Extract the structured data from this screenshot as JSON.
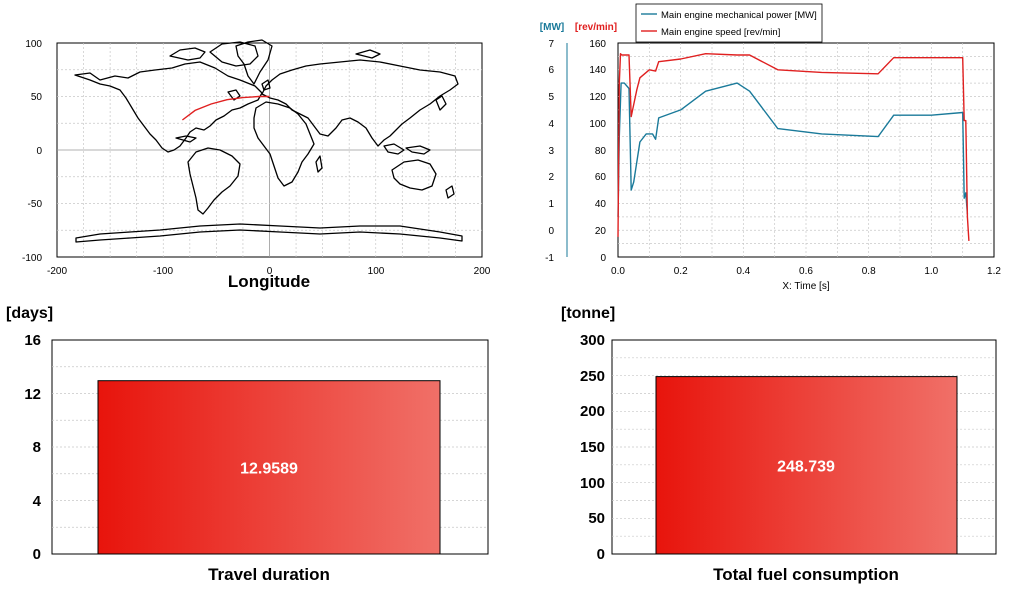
{
  "chart_data": [
    {
      "type": "map",
      "title": "Longitude",
      "x_ticks": [
        "-200",
        "-100",
        "0",
        "100",
        "200"
      ],
      "y_ticks": [
        "100",
        "50",
        "0",
        "-50",
        "-100"
      ],
      "xlim": [
        -200,
        200
      ],
      "ylim": [
        -100,
        100
      ],
      "route": {
        "name": "voyage route",
        "color": "#e02020",
        "lon": [
          -82,
          -70,
          -55,
          -40,
          -25,
          -10,
          0
        ],
        "lat": [
          28,
          37,
          43,
          47,
          49,
          50,
          50
        ]
      }
    },
    {
      "type": "line",
      "xlabel": "X: Time [s]",
      "x_ticks": [
        "0.0",
        "0.2",
        "0.4",
        "0.6",
        "0.8",
        "1.0",
        "1.2"
      ],
      "xlim": [
        0,
        1.2
      ],
      "left_axis": {
        "unit": "[MW]",
        "ticks": [
          "7",
          "6",
          "5",
          "4",
          "3",
          "2",
          "1",
          "0",
          "-1"
        ],
        "ylim": [
          -1,
          7
        ],
        "color": "#1a7a9a"
      },
      "right_axis": {
        "unit": "[rev/min]",
        "ticks": [
          "160",
          "140",
          "120",
          "100",
          "80",
          "60",
          "40",
          "20",
          "0"
        ],
        "ylim": [
          0,
          160
        ],
        "color": "#e02020"
      },
      "series": [
        {
          "name": "Main engine mechanical power [MW]",
          "axis": "left",
          "color": "#1a7a9a",
          "x": [
            0.0,
            0.004,
            0.01,
            0.02,
            0.035,
            0.042,
            0.05,
            0.07,
            0.09,
            0.11,
            0.12,
            0.13,
            0.2,
            0.28,
            0.38,
            0.42,
            0.51,
            0.65,
            0.83,
            0.88,
            1.0,
            1.1,
            1.105,
            1.11,
            1.115
          ],
          "y": [
            0.5,
            3.5,
            5.5,
            5.5,
            5.3,
            1.5,
            1.8,
            3.3,
            3.6,
            3.6,
            3.4,
            4.2,
            4.5,
            5.2,
            5.5,
            5.2,
            3.8,
            3.6,
            3.5,
            4.3,
            4.3,
            4.4,
            1.2,
            1.4,
            0.6
          ]
        },
        {
          "name": "Main engine speed [rev/min]",
          "axis": "right",
          "color": "#e02020",
          "x": [
            0.0,
            0.004,
            0.008,
            0.012,
            0.035,
            0.042,
            0.06,
            0.07,
            0.1,
            0.12,
            0.13,
            0.2,
            0.28,
            0.38,
            0.42,
            0.51,
            0.65,
            0.83,
            0.88,
            1.0,
            1.1,
            1.105,
            1.11,
            1.115,
            1.12
          ],
          "y": [
            15,
            130,
            152,
            151,
            151,
            105,
            125,
            134,
            140,
            139,
            146,
            148,
            152,
            151,
            151,
            140,
            138,
            137,
            149,
            149,
            149,
            102,
            102,
            30,
            12
          ]
        }
      ]
    },
    {
      "type": "bar",
      "unit": "[days]",
      "categories": [
        "Travel duration"
      ],
      "values": [
        12.9589
      ],
      "value_label": "12.9589",
      "y_ticks": [
        "16",
        "12",
        "8",
        "4",
        "0"
      ],
      "ylim": [
        0,
        16
      ]
    },
    {
      "type": "bar",
      "unit": "[tonne]",
      "categories": [
        "Total fuel consumption"
      ],
      "values": [
        248.739
      ],
      "value_label": "248.739",
      "y_ticks": [
        "300",
        "250",
        "200",
        "150",
        "100",
        "50",
        "0"
      ],
      "ylim": [
        0,
        300
      ]
    }
  ]
}
